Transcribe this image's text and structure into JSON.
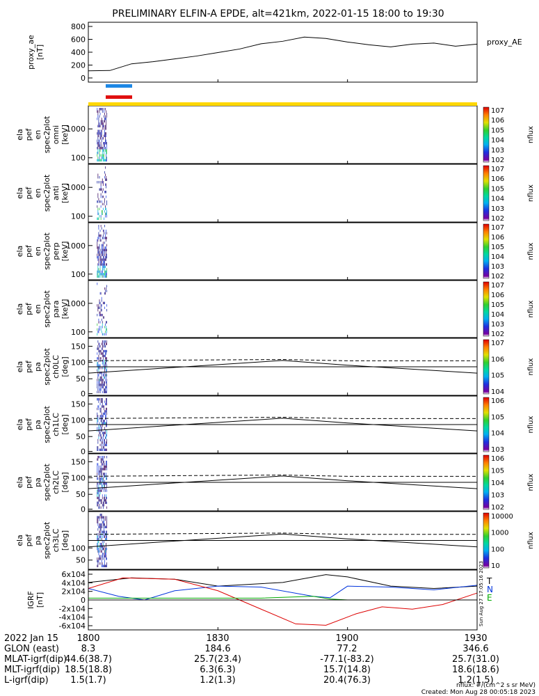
{
  "title": "PRELIMINARY ELFIN-A EPDE, alt=421km, 2022-01-15 18:00 to 19:30",
  "chart_data": [
    {
      "type": "line",
      "ylabel": [
        "proxy_ae",
        "[nT]"
      ],
      "ylim": [
        0,
        850
      ],
      "yticks": [
        "800",
        "600",
        "400",
        "200",
        "0"
      ],
      "legend": "proxy_AE",
      "series": [
        {
          "name": "proxy_AE",
          "x": [
            0,
            5,
            10,
            15,
            20,
            25,
            30,
            35,
            40,
            45,
            50,
            55,
            60,
            65,
            70,
            75,
            80,
            85,
            90
          ],
          "y": [
            160,
            165,
            260,
            290,
            330,
            370,
            420,
            470,
            545,
            580,
            640,
            620,
            570,
            530,
            500,
            540,
            555,
            510,
            540
          ]
        }
      ]
    },
    {
      "type": "heatmap",
      "ylabel": [
        "ela",
        "pef",
        "en",
        "spec2plot",
        "omni",
        "[keV]"
      ],
      "yticks": [
        "1000",
        "100"
      ],
      "zlabel": "nflux",
      "ztick_labels": [
        "10^7",
        "10^6",
        "10^5",
        "10^4",
        "10^3",
        "10^2"
      ],
      "data_x_range": [
        2,
        4.4
      ]
    },
    {
      "type": "heatmap",
      "ylabel": [
        "ela",
        "pef",
        "en",
        "spec2plot",
        "anti",
        "[keV]"
      ],
      "yticks": [
        "1000",
        "100"
      ],
      "zlabel": "nflux",
      "ztick_labels": [
        "10^7",
        "10^6",
        "10^5",
        "10^4",
        "10^3",
        "10^2"
      ],
      "data_x_range": [
        2,
        4.4
      ]
    },
    {
      "type": "heatmap",
      "ylabel": [
        "ela",
        "pef",
        "en",
        "spec2plot",
        "perp",
        "[keV]"
      ],
      "yticks": [
        "1000",
        "100"
      ],
      "zlabel": "nflux",
      "ztick_labels": [
        "10^7",
        "10^6",
        "10^5",
        "10^4",
        "10^3",
        "10^2"
      ],
      "data_x_range": [
        2,
        4.4
      ]
    },
    {
      "type": "heatmap",
      "ylabel": [
        "ela",
        "pef",
        "en",
        "spec2plot",
        "para",
        "[keV]"
      ],
      "yticks": [
        "1000",
        "100"
      ],
      "zlabel": "nflux",
      "ztick_labels": [
        "10^7",
        "10^6",
        "10^5",
        "10^4",
        "10^3",
        "10^2"
      ],
      "data_x_range": [
        2,
        4.4
      ]
    },
    {
      "type": "heatmap",
      "ylabel": [
        "ela",
        "pef",
        "pa",
        "spec2plot",
        "ch0LC",
        "[deg]"
      ],
      "yticks": [
        "150",
        "100",
        "50",
        "0"
      ],
      "ylim": [
        0,
        180
      ],
      "zlabel": "nflux",
      "ztick_labels": [
        "10^7",
        "10^6",
        "10^5",
        "10^4"
      ],
      "data_x_range": [
        2,
        4.4
      ],
      "dashed_lines": [
        {
          "name": "antiLC",
          "x": [
            0,
            20,
            45,
            60,
            90
          ],
          "y": [
            109,
            111,
            113,
            109,
            109
          ]
        }
      ],
      "solid_lines": [
        {
          "name": "LC",
          "x": [
            0,
            20,
            45,
            60,
            90
          ],
          "y": [
            70,
            88,
            110,
            95,
            70
          ]
        }
      ]
    },
    {
      "type": "heatmap",
      "ylabel": [
        "ela",
        "pef",
        "pa",
        "spec2plot",
        "ch1LC",
        "[deg]"
      ],
      "yticks": [
        "150",
        "100",
        "50",
        "0"
      ],
      "ylim": [
        0,
        180
      ],
      "zlabel": "nflux",
      "ztick_labels": [
        "10^6",
        "10^5",
        "10^4",
        "10^3"
      ],
      "data_x_range": [
        2,
        4.4
      ]
    },
    {
      "type": "heatmap",
      "ylabel": [
        "ela",
        "pef",
        "pa",
        "spec2plot",
        "ch2LC",
        "[deg]"
      ],
      "yticks": [
        "150",
        "100",
        "50",
        "0"
      ],
      "ylim": [
        0,
        180
      ],
      "zlabel": "nflux",
      "ztick_labels": [
        "10^6",
        "10^5",
        "10^4",
        "10^3",
        "10^2"
      ],
      "data_x_range": [
        2,
        4.4
      ]
    },
    {
      "type": "heatmap",
      "ylabel": [
        "ela",
        "pef",
        "pa",
        "spec2plot",
        "ch3LC",
        "[deg]"
      ],
      "yticks": [
        "100",
        "50"
      ],
      "ylim": [
        0,
        180
      ],
      "zlabel": "nflux",
      "ztick_labels": [
        "10000",
        "1000",
        "100",
        "10"
      ],
      "data_x_range": [
        2,
        4.4
      ]
    },
    {
      "type": "line",
      "ylabel": [
        "IGRF",
        "[nT]"
      ],
      "ylim": [
        -65000,
        65000
      ],
      "yticks": [
        "6x10^4",
        "4x10^4",
        "2x10^4",
        "0",
        "-2x10^4",
        "-4x10^4",
        "-6x10^4"
      ],
      "legend_labels": [
        "T",
        "N",
        "E"
      ],
      "series": [
        {
          "name": "T",
          "color": "#000000",
          "x": [
            0,
            10,
            20,
            30,
            45,
            55,
            60,
            70,
            80,
            90
          ],
          "y": [
            38000,
            48000,
            45000,
            30000,
            38000,
            55000,
            50000,
            30000,
            25000,
            30000
          ]
        },
        {
          "name": "N",
          "color": "#0033dd",
          "x": [
            0,
            7,
            13,
            20,
            30,
            40,
            52,
            56,
            60,
            70,
            80,
            90
          ],
          "y": [
            25000,
            8000,
            0,
            20000,
            30000,
            28000,
            8000,
            5000,
            30000,
            28000,
            22000,
            32000
          ]
        },
        {
          "name": "E",
          "color": "#dd0000",
          "x": [
            0,
            8,
            20,
            30,
            40,
            48,
            55,
            62,
            68,
            75,
            82,
            90
          ],
          "y": [
            25000,
            48000,
            45000,
            20000,
            -20000,
            -52000,
            -55000,
            -30000,
            -15000,
            -20000,
            -10000,
            15000
          ]
        },
        {
          "name": "Z",
          "color": "#00aa00",
          "x": [
            0,
            20,
            40,
            52,
            56,
            60,
            90
          ],
          "y": [
            4000,
            4000,
            4000,
            8000,
            2000,
            0,
            0
          ]
        }
      ]
    }
  ],
  "time_axis": {
    "ticks": [
      "1800",
      "1830",
      "1900",
      "1930"
    ],
    "label": "2022 Jan 15"
  },
  "ephemeris": [
    {
      "label": "GLON (east)",
      "values": [
        "8.3",
        "184.6",
        "77.2",
        "346.6"
      ]
    },
    {
      "label": "MLAT-igrf(dip)",
      "values": [
        "44.6(38.7)",
        "25.7(23.4)",
        "-77.1(-83.2)",
        "25.7(31.0)"
      ]
    },
    {
      "label": "MLT-igrf(dip)",
      "values": [
        "18.5(18.8)",
        "6.3(6.3)",
        "15.7(14.8)",
        "18.6(18.6)"
      ]
    },
    {
      "label": "L-igrf(dip)",
      "values": [
        "1.5(1.7)",
        "1.2(1.3)",
        "20.4(76.3)",
        "1.2(1.5)"
      ]
    }
  ],
  "footer": {
    "units": "nflux: #/(cm^2 s sr MeV)",
    "created": "Created: Mon Aug 28 00:05:18 2023",
    "side_stamp": "Sun Aug 27 17:05:16 2023"
  },
  "colors": {
    "state_bar_blue": "#1e88e5",
    "state_bar_red": "#e01010",
    "state_bar_yellow": "#ffd700"
  }
}
